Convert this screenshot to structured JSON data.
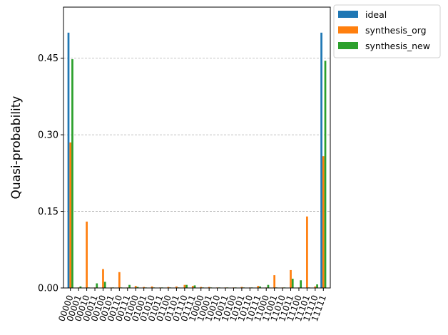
{
  "chart_data": {
    "type": "bar",
    "title": "",
    "xlabel": "",
    "ylabel": "Quasi-probability",
    "ylim": [
      0,
      0.55
    ],
    "yticks": [
      0.0,
      0.15,
      0.3,
      0.45
    ],
    "ytick_labels": [
      "0.00",
      "0.15",
      "0.30",
      "0.45"
    ],
    "grid": "y-dashed",
    "legend_position": "outside-top-right",
    "categories": [
      "00000",
      "00001",
      "00010",
      "00011",
      "00100",
      "00101",
      "00110",
      "00111",
      "01000",
      "01001",
      "01010",
      "01011",
      "01100",
      "01101",
      "01110",
      "01111",
      "10000",
      "10001",
      "10010",
      "10011",
      "10100",
      "10101",
      "10110",
      "10111",
      "11000",
      "11001",
      "11010",
      "11011",
      "11100",
      "11101",
      "11110",
      "11111"
    ],
    "series": [
      {
        "name": "ideal",
        "color": "#1f77b4",
        "values": [
          0.5,
          0,
          0,
          0,
          0,
          0,
          0,
          0,
          0,
          0,
          0,
          0,
          0,
          0,
          0,
          0,
          0,
          0,
          0,
          0,
          0,
          0,
          0,
          0,
          0,
          0,
          0,
          0,
          0,
          0,
          0,
          0.5
        ]
      },
      {
        "name": "synthesis_org",
        "color": "#ff7f0e",
        "values": [
          0.285,
          0.001,
          0.13,
          0.001,
          0.037,
          0.001,
          0.031,
          0.001,
          0.004,
          0.002,
          0.003,
          0.001,
          0.002,
          0.003,
          0.006,
          0.004,
          0.002,
          0.002,
          0.001,
          0.001,
          0.001,
          0.002,
          0.001,
          0.004,
          0.001,
          0.025,
          0.001,
          0.035,
          0.001,
          0.14,
          0.003,
          0.258
        ]
      },
      {
        "name": "synthesis_new",
        "color": "#2ca02c",
        "values": [
          0.448,
          0.003,
          0.001,
          0.009,
          0.012,
          0.001,
          0.001,
          0.006,
          0.002,
          0.001,
          0.001,
          0.001,
          0.001,
          0.001,
          0.006,
          0.005,
          0.001,
          0.001,
          0.001,
          0.001,
          0.001,
          0.001,
          0.001,
          0.003,
          0.006,
          0.001,
          0.001,
          0.018,
          0.015,
          0.001,
          0.007,
          0.445
        ]
      }
    ]
  }
}
